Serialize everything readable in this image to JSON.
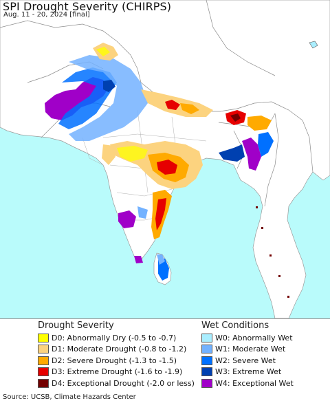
{
  "header": {
    "title": "SPI Drought Severity (CHIRPS)",
    "subtitle": "Aug. 11 - 20, 2024 [final]"
  },
  "legend": {
    "drought": {
      "heading": "Drought Severity",
      "items": [
        {
          "label": "D0: Abnormally Dry (-0.5 to -0.7)",
          "color": "#ffff00"
        },
        {
          "label": "D1: Moderate Drought (-0.8 to -1.2)",
          "color": "#fcd37f"
        },
        {
          "label": "D2: Severe Drought (-1.3 to -1.5)",
          "color": "#ffaa00"
        },
        {
          "label": "D3: Extreme Drought (-1.6 to -1.9)",
          "color": "#e60000"
        },
        {
          "label": "D4: Exceptional Drought (-2.0 or less)",
          "color": "#730000"
        }
      ]
    },
    "wet": {
      "heading": "Wet Conditions",
      "items": [
        {
          "label": "W0: Abnormally Wet",
          "color": "#aaeeff"
        },
        {
          "label": "W1: Moderate Wet",
          "color": "#73b2ff"
        },
        {
          "label": "W2: Severe Wet",
          "color": "#0070ff"
        },
        {
          "label": "W3: Extreme Wet",
          "color": "#0040b0"
        },
        {
          "label": "W4: Exceptional Wet",
          "color": "#a000c8"
        }
      ]
    }
  },
  "footer": {
    "source": "Source: UCSB, Climate Hazards Center"
  },
  "colors": {
    "ocean": "#a6fafa",
    "land_outside": "#ffffff",
    "land_normal": "#ffffff",
    "border": "#8c8c8c"
  }
}
